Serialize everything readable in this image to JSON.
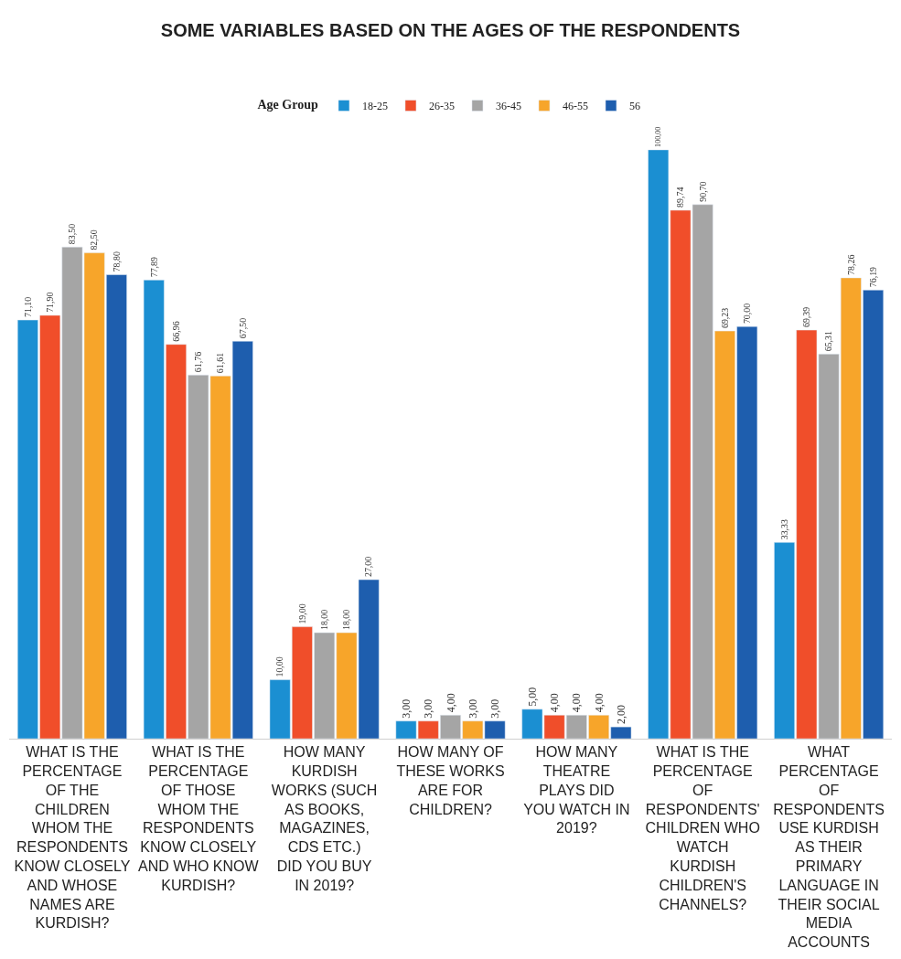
{
  "chart_data": {
    "type": "bar",
    "title": "SOME VARIABLES BASED ON THE AGES OF THE RESPONDENTS",
    "legend_title": "Age Group",
    "legend": "top",
    "categories": [
      "WHAT IS THE PERCENTAGE OF THE CHILDREN WHOM THE RESPONDENTS KNOW CLOSELY AND WHOSE NAMES ARE KURDISH?",
      "WHAT IS THE PERCENTAGE OF THOSE WHOM THE RESPONDENTS KNOW CLOSELY AND WHO KNOW KURDISH?",
      "HOW MANY KURDISH WORKS (SUCH AS BOOKS, MAGAZINES, CDS ETC.) DID YOU BUY IN 2019?",
      "HOW MANY OF THESE WORKS ARE FOR CHILDREN?",
      "HOW MANY THEATRE PLAYS DID YOU WATCH IN 2019?",
      "WHAT IS THE PERCENTAGE OF RESPONDENTS' CHILDREN WHO WATCH KURDISH CHILDREN'S CHANNELS?",
      "WHAT PERCENTAGE OF RESPONDENTS USE KURDISH AS THEIR PRIMARY LANGUAGE IN THEIR SOCIAL MEDIA ACCOUNTS"
    ],
    "series": [
      {
        "name": "18-25",
        "color": "#1b8fd2",
        "values": [
          71.1,
          77.89,
          10,
          3,
          5,
          100,
          33.33
        ],
        "value_labels": [
          "71,10",
          "77,89",
          "10,00",
          "3,00",
          "5,00",
          "100,00",
          "33,33"
        ]
      },
      {
        "name": "26-35",
        "color": "#f04e2a",
        "values": [
          71.9,
          66.96,
          19,
          3,
          4,
          89.74,
          69.39
        ],
        "value_labels": [
          "71,90",
          "66,96",
          "19,00",
          "3,00",
          "4,00",
          "89,74",
          "69,39"
        ]
      },
      {
        "name": "36-45",
        "color": "#a5a5a5",
        "values": [
          83.5,
          61.76,
          18,
          4,
          4,
          90.7,
          65.31
        ],
        "value_labels": [
          "83,50",
          "61,76",
          "18,00",
          "4,00",
          "4,00",
          "90,70",
          "65,31"
        ]
      },
      {
        "name": "46-55",
        "color": "#f7a52a",
        "values": [
          82.5,
          61.61,
          18,
          3,
          4,
          69.23,
          78.26
        ],
        "value_labels": [
          "82,50",
          "61,61",
          "18,00",
          "3,00",
          "4,00",
          "69,23",
          "78,26"
        ]
      },
      {
        "name": "56",
        "color": "#1e5eae",
        "values": [
          78.8,
          67.5,
          27,
          3,
          2,
          70,
          76.19
        ],
        "value_labels": [
          "78,80",
          "67,50",
          "27,00",
          "3,00",
          "2,00",
          "70,00",
          "76,19"
        ]
      }
    ]
  }
}
